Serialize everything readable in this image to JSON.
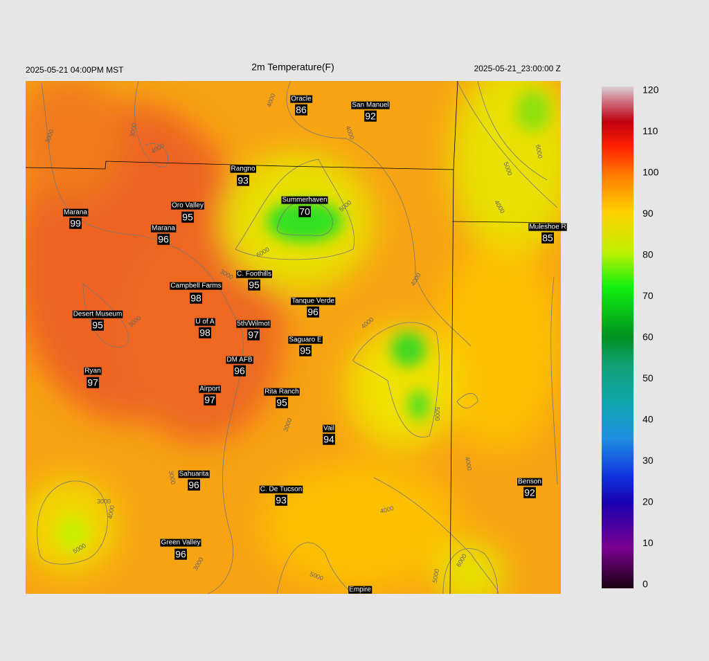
{
  "header": {
    "left": "2025-05-21 04:00PM MST",
    "title": "2m Temperature(F)",
    "right": "2025-05-21_23:00:00 Z"
  },
  "stations": [
    {
      "name": "Oracle",
      "value": 86
    },
    {
      "name": "San Manuel",
      "value": 92
    },
    {
      "name": "Rangno",
      "value": 93
    },
    {
      "name": "Summerhaven",
      "value": 70
    },
    {
      "name": "Marana",
      "value": 99
    },
    {
      "name": "Oro Valley",
      "value": 95
    },
    {
      "name": "Marana",
      "value": 96
    },
    {
      "name": "Muleshoe R",
      "value": 85
    },
    {
      "name": "C. Foothills",
      "value": 95
    },
    {
      "name": "Campbell Farms",
      "value": 98
    },
    {
      "name": "Tanque Verde",
      "value": 96
    },
    {
      "name": "Desert Museum",
      "value": 95
    },
    {
      "name": "U of A",
      "value": 98
    },
    {
      "name": "5th/Wilmot",
      "value": 97
    },
    {
      "name": "Saguaro E",
      "value": 95
    },
    {
      "name": "DM AFB",
      "value": 96
    },
    {
      "name": "Ryan",
      "value": 97
    },
    {
      "name": "Airport",
      "value": 97
    },
    {
      "name": "Rita Ranch",
      "value": 95
    },
    {
      "name": "Vail",
      "value": 94
    },
    {
      "name": "Benson",
      "value": 92
    },
    {
      "name": "Sahuarita",
      "value": 96
    },
    {
      "name": "C. De Tucson",
      "value": 93
    },
    {
      "name": "Green Valley",
      "value": 96
    },
    {
      "name": "Empire"
    }
  ],
  "colorbar": {
    "ticks": [
      0,
      10,
      20,
      30,
      40,
      50,
      60,
      70,
      80,
      90,
      100,
      110,
      120
    ]
  },
  "contour_labels": [
    3000,
    3000,
    4000,
    4000,
    4000,
    3000,
    6000,
    5000,
    3000,
    3000,
    4000,
    5000,
    6000,
    5000,
    4000,
    4000,
    3000,
    4000,
    4000,
    5000,
    3000,
    5000,
    5000,
    6000,
    4000,
    3000
  ]
}
